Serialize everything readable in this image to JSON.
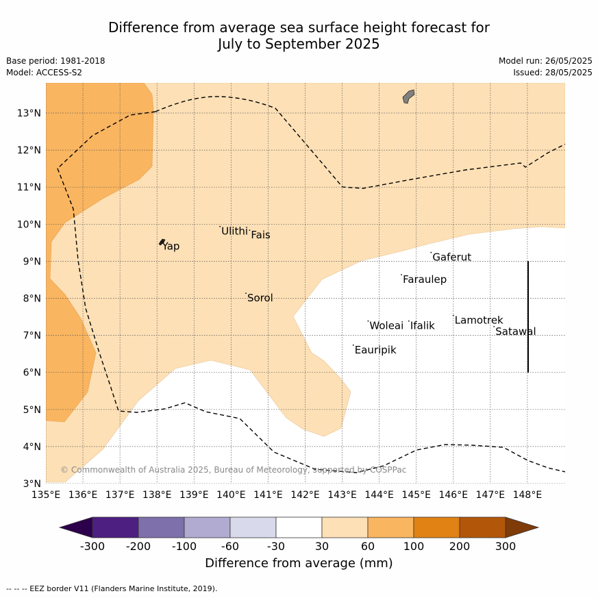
{
  "title": {
    "line1": "Difference from average sea surface height forecast for",
    "line2": "July to September 2025"
  },
  "meta": {
    "base_period": "Base period: 1981-2018",
    "model": "Model: ACCESS-S2",
    "model_run": "Model run: 26/05/2025",
    "issued": "Issued: 28/05/2025"
  },
  "map": {
    "lon_range": [
      135,
      149
    ],
    "lat_range": [
      3,
      13.8
    ],
    "lon_ticks": [
      "135°E",
      "136°E",
      "137°E",
      "138°E",
      "139°E",
      "140°E",
      "141°E",
      "142°E",
      "143°E",
      "144°E",
      "145°E",
      "146°E",
      "147°E",
      "148°E"
    ],
    "lat_ticks": [
      "3°N",
      "4°N",
      "5°N",
      "6°N",
      "7°N",
      "8°N",
      "9°N",
      "10°N",
      "11°N",
      "12°N",
      "13°N"
    ],
    "places": [
      {
        "name": "Yap",
        "lon": 138.1,
        "lat": 9.5
      },
      {
        "name": "Ulithi",
        "lon": 139.7,
        "lat": 9.9
      },
      {
        "name": "Fais",
        "lon": 140.5,
        "lat": 9.8
      },
      {
        "name": "Sorol",
        "lon": 140.4,
        "lat": 8.1
      },
      {
        "name": "Gaferut",
        "lon": 145.4,
        "lat": 9.2
      },
      {
        "name": "Faraulep",
        "lon": 144.6,
        "lat": 8.6
      },
      {
        "name": "Woleai",
        "lon": 143.7,
        "lat": 7.35
      },
      {
        "name": "Ifalik",
        "lon": 144.8,
        "lat": 7.35
      },
      {
        "name": "Eauripik",
        "lon": 143.3,
        "lat": 6.7
      },
      {
        "name": "Lamotrek",
        "lon": 146.0,
        "lat": 7.5
      },
      {
        "name": "Satawal",
        "lon": 147.1,
        "lat": 7.2
      }
    ],
    "copyright": "© Commonwealth of Australia 2025, Bureau of Meteorology, supported by COSPPac"
  },
  "colorbar": {
    "ticks": [
      "-300",
      "-200",
      "-100",
      "-60",
      "-30",
      "30",
      "60",
      "100",
      "200",
      "300"
    ],
    "colors": [
      "#4d1f80",
      "#7d70ab",
      "#b1aad1",
      "#d9d9ec",
      "#ffffff",
      "#fde0b6",
      "#f9b560",
      "#e08214",
      "#b25709"
    ],
    "extend_low": "#2d004b",
    "extend_high": "#7f3b08",
    "label": "Difference from average (mm)"
  },
  "footnote": "--  --  -- EEZ border V11 (Flanders Marine Institute, 2019)."
}
